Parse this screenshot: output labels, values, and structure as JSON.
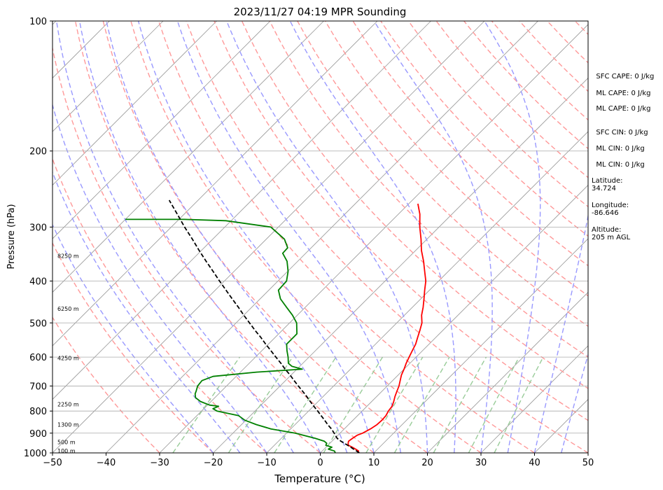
{
  "chart_data": {
    "type": "line",
    "title": "2023/11/27 04:19 MPR Sounding",
    "xlabel": "Temperature (°C)",
    "ylabel": "Pressure (hPa)",
    "xlim": [
      -50,
      50
    ],
    "ylim": [
      1000,
      100
    ],
    "y_scale": "log",
    "grid": true,
    "x_ticks": [
      -50,
      -40,
      -30,
      -20,
      -10,
      0,
      10,
      20,
      30,
      40,
      50
    ],
    "y_ticks": [
      100,
      200,
      300,
      400,
      500,
      600,
      700,
      800,
      900,
      1000
    ],
    "skew_degrees": 45,
    "height_labels": [
      {
        "text": "100 m",
        "pressure": 988
      },
      {
        "text": "500 m",
        "pressure": 943
      },
      {
        "text": "1300 m",
        "pressure": 860
      },
      {
        "text": "2250 m",
        "pressure": 772
      },
      {
        "text": "4250 m",
        "pressure": 603
      },
      {
        "text": "6250 m",
        "pressure": 464
      },
      {
        "text": "8250 m",
        "pressure": 350
      }
    ],
    "series": [
      {
        "role": "temperature",
        "color": "#ff0000",
        "points": [
          [
            1000,
            7.0
          ],
          [
            990,
            6.8
          ],
          [
            980,
            5.9
          ],
          [
            970,
            4.9
          ],
          [
            960,
            3.8
          ],
          [
            950,
            3.4
          ],
          [
            940,
            3.1
          ],
          [
            925,
            3.3
          ],
          [
            910,
            3.6
          ],
          [
            900,
            4.2
          ],
          [
            880,
            4.9
          ],
          [
            860,
            5.3
          ],
          [
            840,
            5.4
          ],
          [
            820,
            5.3
          ],
          [
            800,
            4.9
          ],
          [
            780,
            4.7
          ],
          [
            760,
            4.1
          ],
          [
            740,
            3.4
          ],
          [
            720,
            2.8
          ],
          [
            700,
            2.2
          ],
          [
            680,
            1.4
          ],
          [
            660,
            0.6
          ],
          [
            640,
            0.0
          ],
          [
            620,
            -0.7
          ],
          [
            600,
            -1.3
          ],
          [
            580,
            -1.9
          ],
          [
            560,
            -2.5
          ],
          [
            540,
            -3.4
          ],
          [
            520,
            -4.3
          ],
          [
            500,
            -5.3
          ],
          [
            480,
            -6.8
          ],
          [
            460,
            -8.0
          ],
          [
            440,
            -9.4
          ],
          [
            420,
            -10.9
          ],
          [
            400,
            -12.4
          ],
          [
            380,
            -14.4
          ],
          [
            360,
            -16.5
          ],
          [
            340,
            -18.9
          ],
          [
            320,
            -21.1
          ],
          [
            300,
            -23.6
          ],
          [
            280,
            -26.0
          ],
          [
            265,
            -28.3
          ]
        ]
      },
      {
        "role": "dewpoint",
        "color": "#008000",
        "points": [
          [
            1000,
            2.8
          ],
          [
            990,
            2.3
          ],
          [
            980,
            0.8
          ],
          [
            970,
            1.1
          ],
          [
            960,
            -0.4
          ],
          [
            950,
            -0.6
          ],
          [
            940,
            -1.4
          ],
          [
            925,
            -3.7
          ],
          [
            900,
            -8.4
          ],
          [
            880,
            -13.7
          ],
          [
            860,
            -17.2
          ],
          [
            840,
            -20.2
          ],
          [
            820,
            -22.2
          ],
          [
            800,
            -27.1
          ],
          [
            790,
            -28.3
          ],
          [
            780,
            -27.7
          ],
          [
            775,
            -29.6
          ],
          [
            760,
            -32.0
          ],
          [
            745,
            -33.6
          ],
          [
            730,
            -34.4
          ],
          [
            720,
            -34.7
          ],
          [
            700,
            -35.4
          ],
          [
            680,
            -35.6
          ],
          [
            665,
            -34.3
          ],
          [
            650,
            -27.0
          ],
          [
            640,
            -19.0
          ],
          [
            630,
            -21.5
          ],
          [
            620,
            -22.7
          ],
          [
            600,
            -23.9
          ],
          [
            580,
            -25.3
          ],
          [
            560,
            -26.6
          ],
          [
            545,
            -26.6
          ],
          [
            530,
            -26.6
          ],
          [
            500,
            -28.7
          ],
          [
            480,
            -30.9
          ],
          [
            460,
            -33.5
          ],
          [
            440,
            -36.2
          ],
          [
            420,
            -38.2
          ],
          [
            400,
            -38.4
          ],
          [
            380,
            -39.9
          ],
          [
            360,
            -42.0
          ],
          [
            345,
            -44.3
          ],
          [
            335,
            -44.4
          ],
          [
            320,
            -46.6
          ],
          [
            300,
            -51.4
          ],
          [
            290,
            -61.0
          ],
          [
            288,
            -69.0
          ],
          [
            288,
            -80.0
          ]
        ]
      },
      {
        "role": "parcel_profile",
        "color": "#000000",
        "points": [
          [
            1000,
            7.3
          ],
          [
            990,
            6.4
          ],
          [
            980,
            5.5
          ],
          [
            970,
            4.6
          ],
          [
            960,
            3.7
          ],
          [
            950,
            2.7
          ],
          [
            940,
            1.7
          ],
          [
            925,
            0.4
          ],
          [
            900,
            -1.1
          ],
          [
            880,
            -2.4
          ],
          [
            860,
            -3.9
          ],
          [
            840,
            -5.3
          ],
          [
            820,
            -6.8
          ],
          [
            800,
            -8.3
          ],
          [
            780,
            -9.9
          ],
          [
            760,
            -11.5
          ],
          [
            740,
            -13.1
          ],
          [
            720,
            -14.8
          ],
          [
            700,
            -16.6
          ],
          [
            680,
            -18.4
          ],
          [
            660,
            -20.2
          ],
          [
            640,
            -22.2
          ],
          [
            620,
            -24.1
          ],
          [
            600,
            -26.2
          ],
          [
            580,
            -28.3
          ],
          [
            560,
            -30.5
          ],
          [
            540,
            -32.7
          ],
          [
            520,
            -35.1
          ],
          [
            500,
            -37.5
          ],
          [
            480,
            -40.0
          ],
          [
            460,
            -42.5
          ],
          [
            440,
            -45.2
          ],
          [
            420,
            -48.0
          ],
          [
            400,
            -50.9
          ],
          [
            380,
            -53.9
          ],
          [
            360,
            -57.1
          ],
          [
            340,
            -60.4
          ],
          [
            320,
            -63.8
          ],
          [
            300,
            -67.5
          ],
          [
            280,
            -71.3
          ],
          [
            260,
            -75.4
          ]
        ]
      }
    ],
    "stats": [
      {
        "label": "SFC CAPE",
        "value": "0 J/kg"
      },
      {
        "label": "ML CAPE",
        "value": "0 J/kg"
      },
      {
        "label": "ML CAPE",
        "value": "0 J/kg"
      },
      {
        "label": "SFC CIN",
        "value": "0 J/kg"
      },
      {
        "label": "ML CIN",
        "value": "0 J/kg"
      },
      {
        "label": "ML CIN",
        "value": "0 J/kg"
      }
    ],
    "location": {
      "latitude_label": "Latitude:",
      "latitude": "34.724",
      "longitude_label": "Longitude:",
      "longitude": "-86.646",
      "altitude_label": "Altitude:",
      "altitude": "205 m AGL"
    },
    "colors": {
      "dry_adiabat": "#ff9999",
      "moist_adiabat": "#9999ff",
      "mixing_ratio": "#99cc99",
      "isotherm": "#999999",
      "isobar": "#aaaaaa"
    }
  }
}
